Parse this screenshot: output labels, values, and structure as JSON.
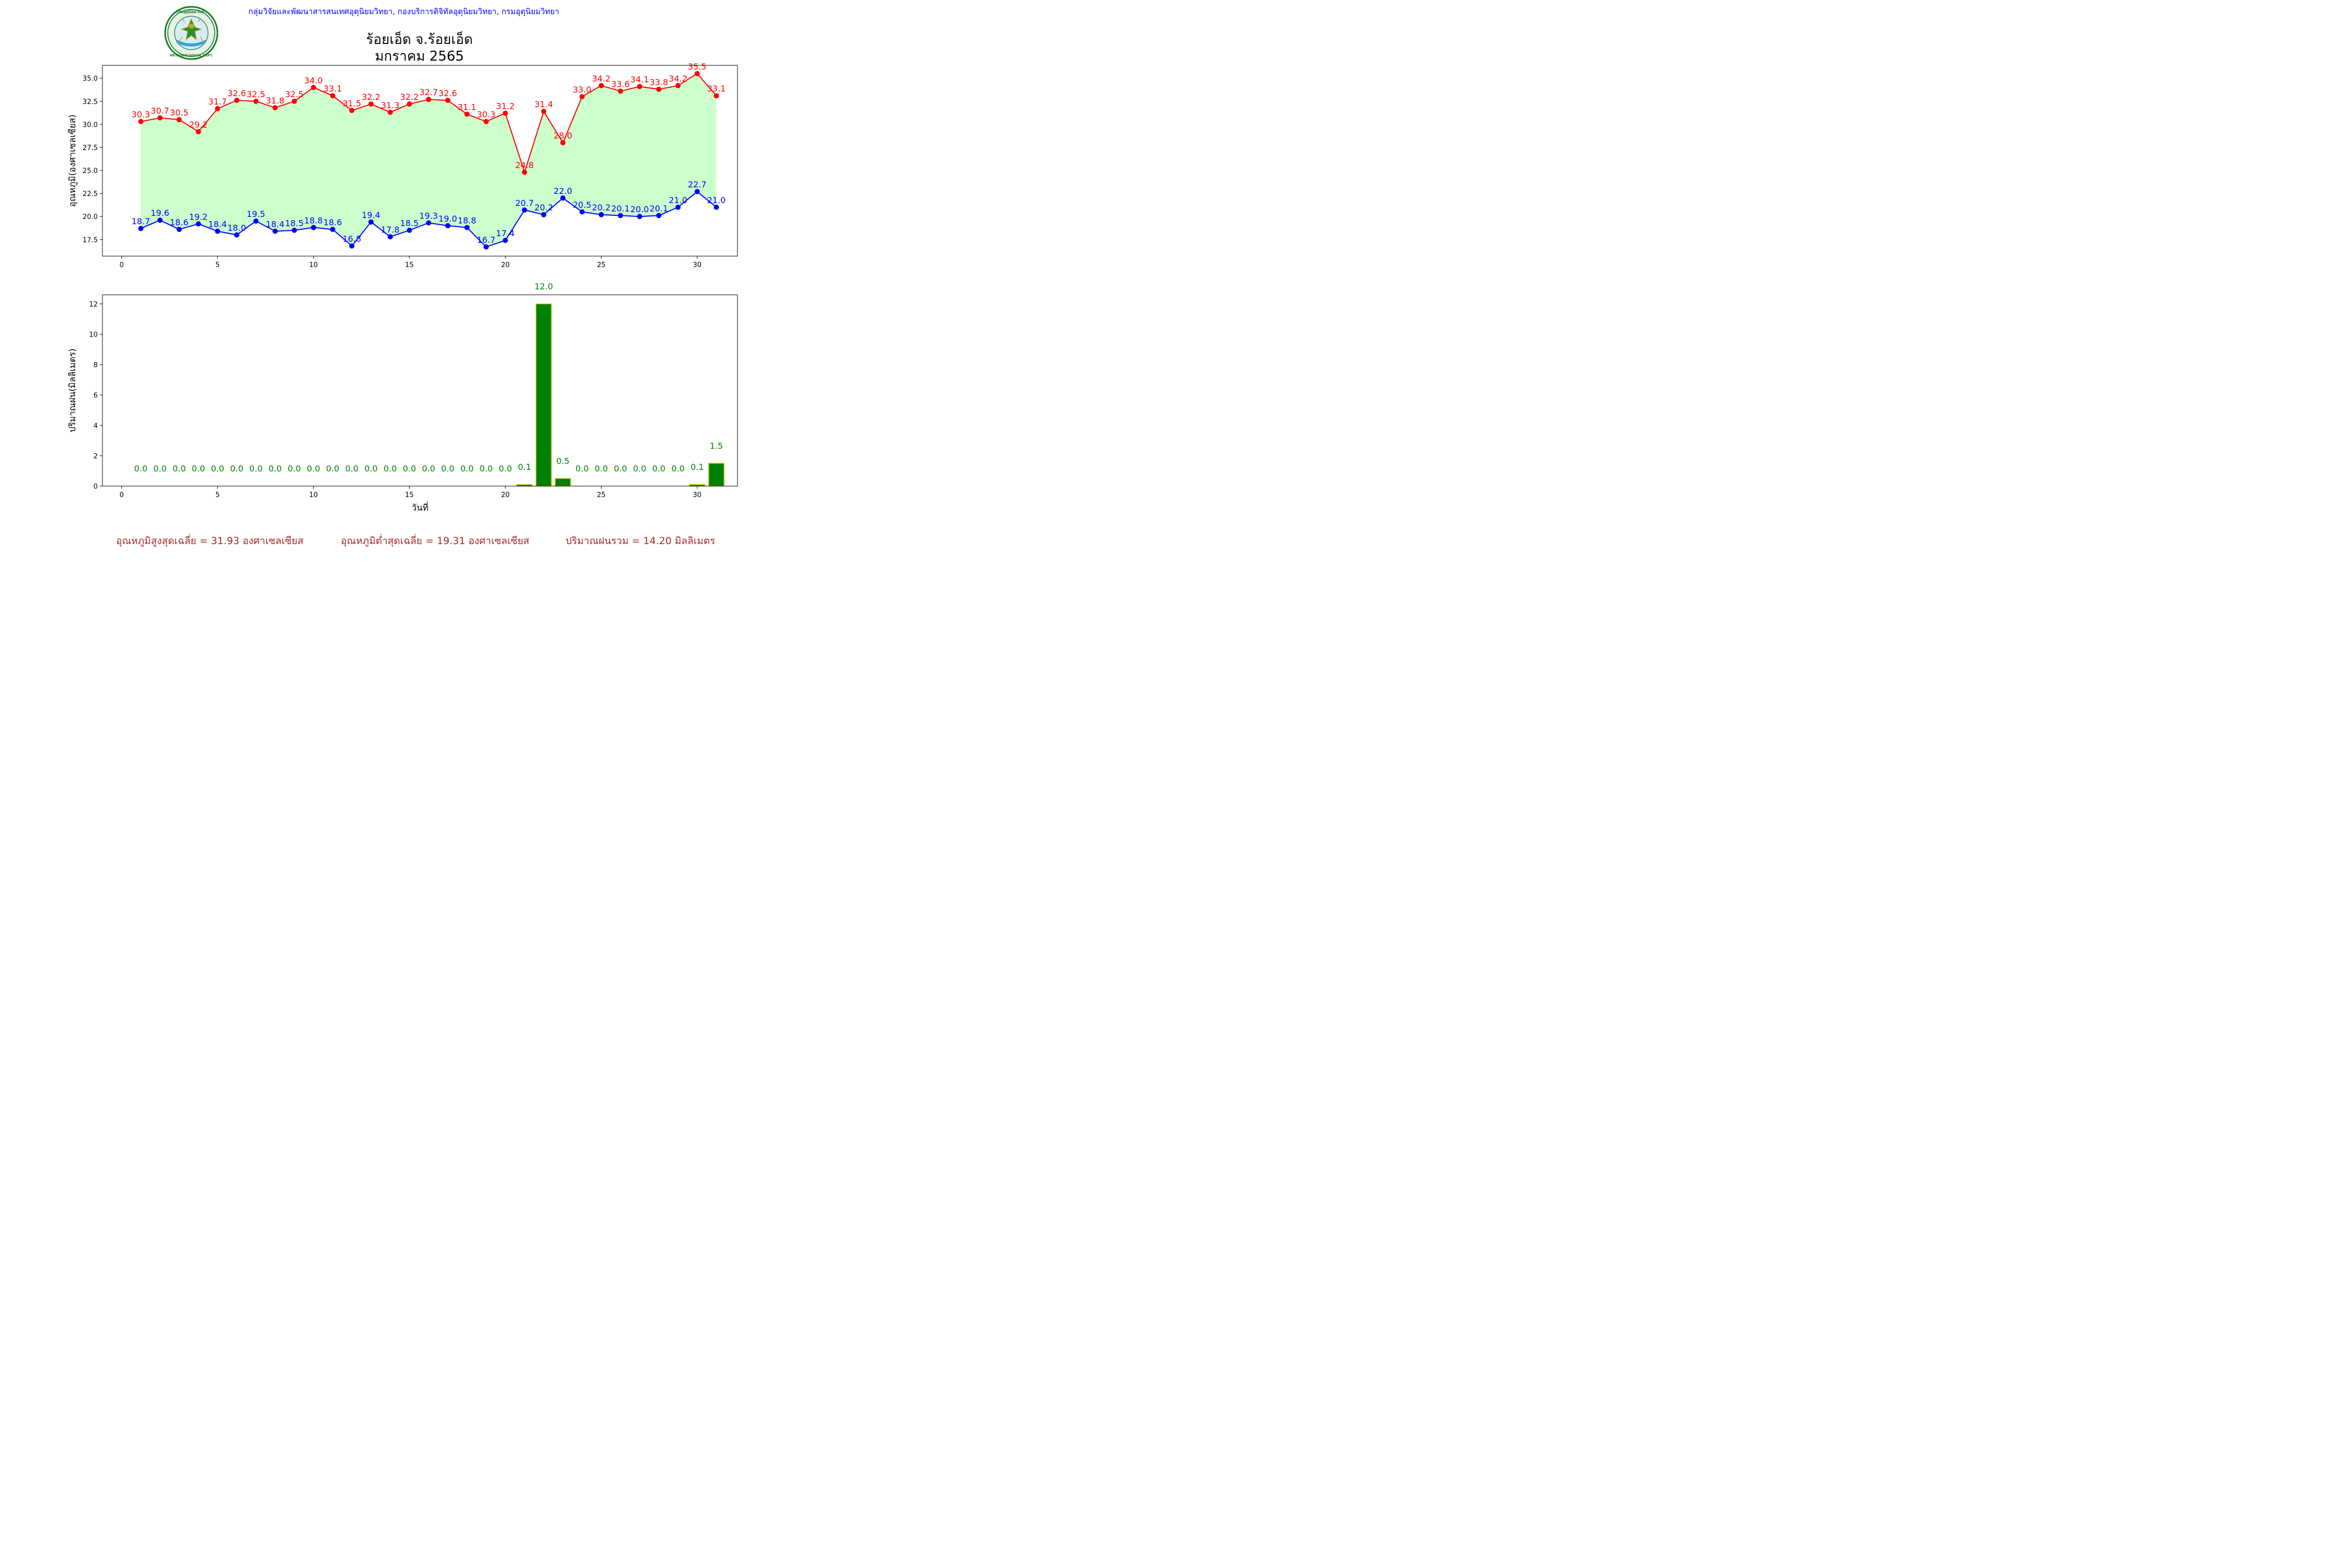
{
  "header": {
    "department_line": "กลุ่มวิจัยและพัฒนาสารสนเทศอุตุนิยมวิทยา, กองบริการดิจิทัลอุตุนิยมวิทยา, กรมอุตุนิยมวิทยา",
    "logo_text": "กรมอุตุนิยมวิทยา METEOROLOGICAL DEPARTMENT"
  },
  "title": {
    "station": "ร้อยเอ็ด จ.ร้อยเอ็ด",
    "period": "มกราคม 2565"
  },
  "colors": {
    "max_line": "#ff0000",
    "min_line": "#0000ff",
    "fill": "#ccffcc",
    "rain_bar": "#008000",
    "rain_edge": "#d4c400",
    "rain_label": "#008000",
    "footer": "#a52a2a",
    "header": "#0000ff"
  },
  "chart_data": [
    {
      "type": "line",
      "title": "",
      "xlabel": "",
      "ylabel": "อุณหภูมิ(องศาเซลเซียส)",
      "xlim": [
        -1,
        32.1
      ],
      "ylim": [
        15.7,
        36.4
      ],
      "xticks": [
        0,
        5,
        10,
        15,
        20,
        25,
        30
      ],
      "yticks": [
        17.5,
        20.0,
        22.5,
        25.0,
        27.5,
        30.0,
        32.5,
        35.0
      ],
      "x": [
        1,
        2,
        3,
        4,
        5,
        6,
        7,
        8,
        9,
        10,
        11,
        12,
        13,
        14,
        15,
        16,
        17,
        18,
        19,
        20,
        21,
        22,
        23,
        24,
        25,
        26,
        27,
        28,
        29,
        30,
        31
      ],
      "fill_between": true,
      "series": [
        {
          "key": "max",
          "values": [
            30.3,
            30.7,
            30.5,
            29.2,
            31.7,
            32.6,
            32.5,
            31.8,
            32.5,
            34.0,
            33.1,
            31.5,
            32.2,
            31.3,
            32.2,
            32.7,
            32.6,
            31.1,
            30.3,
            31.2,
            24.8,
            31.4,
            28.0,
            33.0,
            34.2,
            33.6,
            34.1,
            33.8,
            34.2,
            35.5,
            33.1
          ]
        },
        {
          "key": "min",
          "values": [
            18.7,
            19.6,
            18.6,
            19.2,
            18.4,
            18.0,
            19.5,
            18.4,
            18.5,
            18.8,
            18.6,
            16.8,
            19.4,
            17.8,
            18.5,
            19.3,
            19.0,
            18.8,
            16.7,
            17.4,
            20.7,
            20.2,
            22.0,
            20.5,
            20.2,
            20.1,
            20.0,
            20.1,
            21.0,
            22.7,
            21.0
          ]
        }
      ]
    },
    {
      "type": "bar",
      "title": "",
      "xlabel": "วันที่",
      "ylabel": "ปริมาณฝน(มิลลิเมตร)",
      "xlim": [
        -1,
        32.1
      ],
      "ylim": [
        0,
        12.6
      ],
      "xticks": [
        0,
        5,
        10,
        15,
        20,
        25,
        30
      ],
      "yticks": [
        0,
        2,
        4,
        6,
        8,
        10,
        12
      ],
      "categories": [
        1,
        2,
        3,
        4,
        5,
        6,
        7,
        8,
        9,
        10,
        11,
        12,
        13,
        14,
        15,
        16,
        17,
        18,
        19,
        20,
        21,
        22,
        23,
        24,
        25,
        26,
        27,
        28,
        29,
        30,
        31
      ],
      "values": [
        0.0,
        0.0,
        0.0,
        0.0,
        0.0,
        0.0,
        0.0,
        0.0,
        0.0,
        0.0,
        0.0,
        0.0,
        0.0,
        0.0,
        0.0,
        0.0,
        0.0,
        0.0,
        0.0,
        0.0,
        0.1,
        12.0,
        0.5,
        0.0,
        0.0,
        0.0,
        0.0,
        0.0,
        0.0,
        0.1,
        1.5
      ]
    }
  ],
  "footer": {
    "avg_max": "อุณหภูมิสูงสุดเฉลี่ย = 31.93 องศาเซลเซียส",
    "avg_min": "อุณหภูมิต่ำสุดเฉลี่ย = 19.31 องศาเซลเซียส",
    "total_rain": "ปริมาณฝนรวม = 14.20 มิลลิเมตร"
  }
}
